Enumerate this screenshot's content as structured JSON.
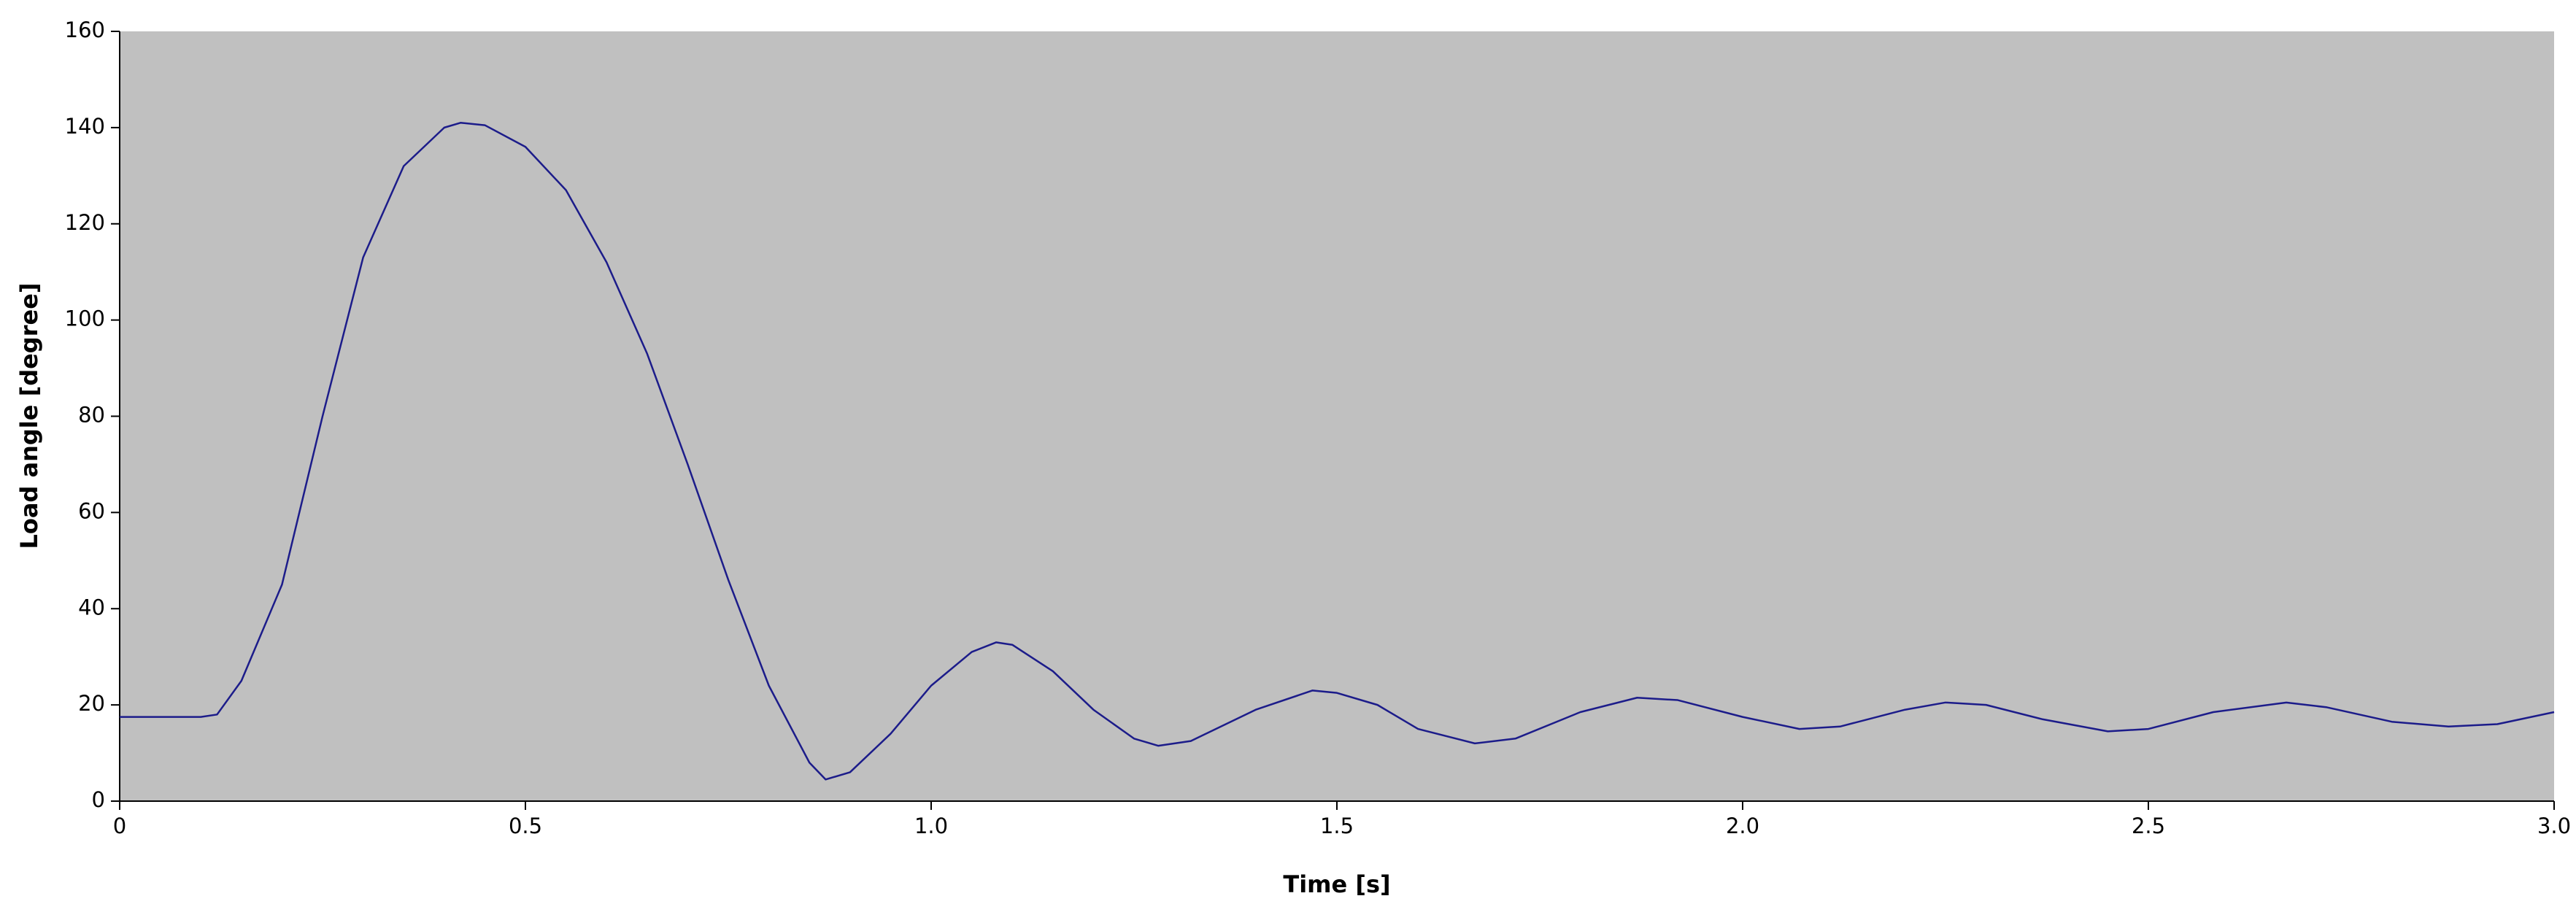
{
  "chart_data": {
    "type": "line",
    "xlabel": "Time [s]",
    "ylabel": "Load angle [degree]",
    "background": "#c0c0c0",
    "x": [
      0,
      0.1,
      0.12,
      0.15,
      0.2,
      0.25,
      0.3,
      0.35,
      0.4,
      0.42,
      0.45,
      0.5,
      0.55,
      0.6,
      0.65,
      0.7,
      0.75,
      0.8,
      0.85,
      0.87,
      0.9,
      0.95,
      1.0,
      1.05,
      1.08,
      1.1,
      1.15,
      1.2,
      1.25,
      1.28,
      1.32,
      1.4,
      1.47,
      1.5,
      1.55,
      1.6,
      1.67,
      1.72,
      1.8,
      1.87,
      1.92,
      2.0,
      2.07,
      2.12,
      2.2,
      2.25,
      2.3,
      2.37,
      2.45,
      2.5,
      2.58,
      2.67,
      2.72,
      2.8,
      2.87,
      2.93,
      3.0
    ],
    "series": [
      {
        "color": "#1c1c8a",
        "values": [
          17.5,
          17.5,
          18,
          25,
          45,
          80,
          113,
          132,
          140,
          141,
          140.5,
          136,
          127,
          112,
          93,
          70,
          46,
          24,
          8,
          4.5,
          6,
          14,
          24,
          31,
          33,
          32.5,
          27,
          19,
          13,
          11.5,
          12.5,
          19,
          23,
          22.5,
          20,
          15,
          12,
          13,
          18.5,
          21.5,
          21,
          17.5,
          15,
          15.5,
          19,
          20.5,
          20,
          17,
          14.5,
          15,
          18.5,
          20.5,
          19.5,
          16.5,
          15.5,
          16,
          18.5
        ]
      }
    ],
    "xlim": [
      0,
      3
    ],
    "xticks": [
      0,
      0.5,
      {
        "value": 1,
        "label": "1.0"
      },
      1.5,
      {
        "value": 2,
        "label": "2.0"
      },
      2.5,
      {
        "value": 3,
        "label": "3.0"
      }
    ],
    "ylim": [
      0,
      160
    ],
    "yticks": [
      0,
      20,
      40,
      60,
      80,
      100,
      120,
      140,
      160
    ]
  }
}
